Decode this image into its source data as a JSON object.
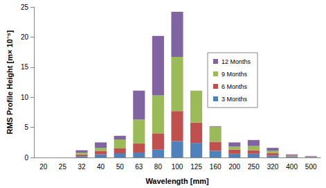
{
  "chart_data": {
    "type": "bar",
    "stacked": true,
    "x_label": "Wavelength [mm]",
    "y_label": "RMS Profile Height [m× 10⁻⁵]",
    "categories": [
      "20",
      "25",
      "32",
      "40",
      "50",
      "63",
      "80",
      "100",
      "125",
      "160",
      "200",
      "250",
      "320",
      "400",
      "500"
    ],
    "series": [
      {
        "name": "3 Months",
        "color": "#4f81bd",
        "values": [
          0,
          0,
          0.2,
          0.5,
          0.7,
          0.8,
          1.3,
          2.7,
          2.4,
          1.1,
          0.6,
          0.6,
          0.3,
          0.1,
          0.05
        ]
      },
      {
        "name": "6 Months",
        "color": "#c0504d",
        "values": [
          0,
          0,
          0.3,
          0.6,
          0.8,
          1.5,
          2.7,
          5.0,
          3.4,
          1.5,
          0.7,
          0.6,
          0.4,
          0.1,
          0.05
        ]
      },
      {
        "name": "9 Months",
        "color": "#9bbb59",
        "values": [
          0,
          0,
          0.3,
          0.5,
          1.5,
          4.0,
          6.3,
          9.0,
          5.3,
          2.5,
          0.5,
          0.7,
          0.4,
          0.1,
          0.05
        ]
      },
      {
        "name": "12 Months",
        "color": "#8064a2",
        "values": [
          0,
          0,
          0.4,
          0.9,
          0.6,
          4.8,
          9.9,
          7.5,
          0,
          0.1,
          0.7,
          1.0,
          0.5,
          0.2,
          0.1
        ]
      }
    ],
    "ylim": [
      0,
      25
    ],
    "yticks": [
      0,
      5,
      10,
      15,
      20,
      25
    ],
    "grid": false,
    "legend": "upper right"
  }
}
